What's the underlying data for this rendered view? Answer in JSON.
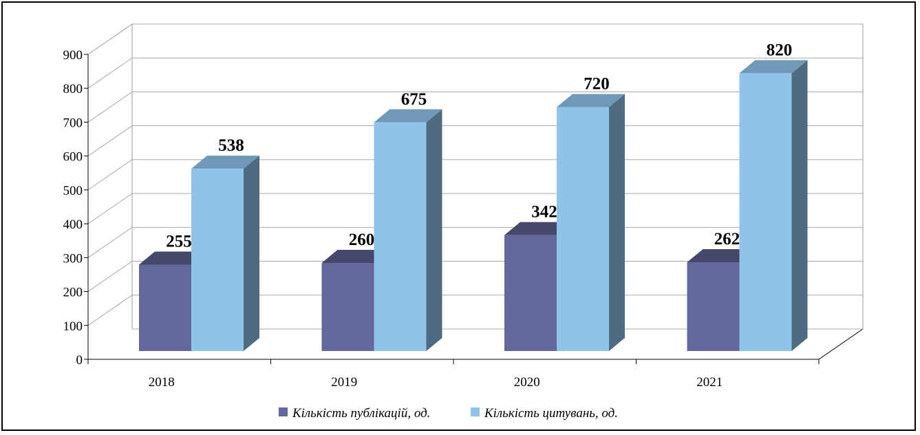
{
  "chart_data": {
    "type": "bar",
    "categories": [
      "2018",
      "2019",
      "2020",
      "2021"
    ],
    "series": [
      {
        "name": "Кількість публікацій, од.",
        "values": [
          255,
          260,
          342,
          262
        ],
        "color": "#636799"
      },
      {
        "name": "Кількість цитувань, од.",
        "values": [
          538,
          675,
          720,
          820
        ],
        "color": "#8fc3ea"
      }
    ],
    "yticks": [
      0,
      100,
      200,
      300,
      400,
      500,
      600,
      700,
      800,
      900
    ],
    "ylim": [
      0,
      900
    ],
    "grid": true,
    "legend": "bottom",
    "three_d": true
  }
}
